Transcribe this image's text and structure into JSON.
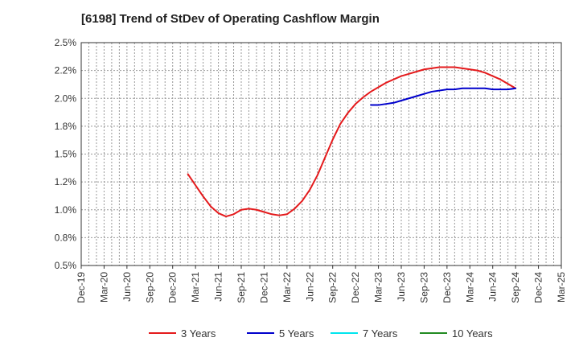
{
  "chart_data": {
    "type": "line",
    "title": "[6198]  Trend of StDev of Operating Cashflow Margin",
    "xlabel": "",
    "ylabel": "",
    "x_ticks": [
      "Dec-19",
      "Mar-20",
      "Jun-20",
      "Sep-20",
      "Dec-20",
      "Mar-21",
      "Jun-21",
      "Sep-21",
      "Dec-21",
      "Mar-22",
      "Jun-22",
      "Sep-22",
      "Dec-22",
      "Mar-23",
      "Jun-23",
      "Sep-23",
      "Dec-23",
      "Mar-24",
      "Jun-24",
      "Sep-24",
      "Dec-24",
      "Mar-25"
    ],
    "y_ticks": [
      "0.5%",
      "0.8%",
      "1.0%",
      "1.2%",
      "1.5%",
      "1.8%",
      "2.0%",
      "2.2%",
      "2.5%"
    ],
    "ylim": [
      0.5,
      2.5
    ],
    "grid": true,
    "legend_position": "bottom",
    "series": [
      {
        "name": "3 Years",
        "color": "#e41a1c",
        "points": [
          [
            "Feb-21",
            1.32
          ],
          [
            "Mar-21",
            1.22
          ],
          [
            "Apr-21",
            1.12
          ],
          [
            "May-21",
            1.03
          ],
          [
            "Jun-21",
            0.97
          ],
          [
            "Jul-21",
            0.94
          ],
          [
            "Aug-21",
            0.96
          ],
          [
            "Sep-21",
            1.0
          ],
          [
            "Oct-21",
            1.01
          ],
          [
            "Nov-21",
            1.0
          ],
          [
            "Dec-21",
            0.98
          ],
          [
            "Jan-22",
            0.96
          ],
          [
            "Feb-22",
            0.95
          ],
          [
            "Mar-22",
            0.96
          ],
          [
            "Apr-22",
            1.01
          ],
          [
            "May-22",
            1.08
          ],
          [
            "Jun-22",
            1.18
          ],
          [
            "Jul-22",
            1.31
          ],
          [
            "Aug-22",
            1.47
          ],
          [
            "Sep-22",
            1.63
          ],
          [
            "Oct-22",
            1.77
          ],
          [
            "Nov-22",
            1.87
          ],
          [
            "Dec-22",
            1.95
          ],
          [
            "Jan-23",
            2.01
          ],
          [
            "Feb-23",
            2.06
          ],
          [
            "Mar-23",
            2.1
          ],
          [
            "Apr-23",
            2.14
          ],
          [
            "May-23",
            2.17
          ],
          [
            "Jun-23",
            2.2
          ],
          [
            "Jul-23",
            2.22
          ],
          [
            "Aug-23",
            2.24
          ],
          [
            "Sep-23",
            2.26
          ],
          [
            "Oct-23",
            2.27
          ],
          [
            "Nov-23",
            2.28
          ],
          [
            "Dec-23",
            2.28
          ],
          [
            "Jan-24",
            2.28
          ],
          [
            "Feb-24",
            2.27
          ],
          [
            "Mar-24",
            2.26
          ],
          [
            "Apr-24",
            2.25
          ],
          [
            "May-24",
            2.23
          ],
          [
            "Jun-24",
            2.2
          ],
          [
            "Jul-24",
            2.17
          ],
          [
            "Aug-24",
            2.13
          ],
          [
            "Sep-24",
            2.09
          ]
        ]
      },
      {
        "name": "5 Years",
        "color": "#0000cc",
        "points": [
          [
            "Feb-23",
            1.94
          ],
          [
            "Mar-23",
            1.94
          ],
          [
            "Apr-23",
            1.95
          ],
          [
            "May-23",
            1.96
          ],
          [
            "Jun-23",
            1.98
          ],
          [
            "Jul-23",
            2.0
          ],
          [
            "Aug-23",
            2.02
          ],
          [
            "Sep-23",
            2.04
          ],
          [
            "Oct-23",
            2.06
          ],
          [
            "Nov-23",
            2.07
          ],
          [
            "Dec-23",
            2.08
          ],
          [
            "Jan-24",
            2.08
          ],
          [
            "Feb-24",
            2.09
          ],
          [
            "Mar-24",
            2.09
          ],
          [
            "Apr-24",
            2.09
          ],
          [
            "May-24",
            2.09
          ],
          [
            "Jun-24",
            2.08
          ],
          [
            "Jul-24",
            2.08
          ],
          [
            "Aug-24",
            2.08
          ],
          [
            "Sep-24",
            2.09
          ]
        ]
      },
      {
        "name": "7 Years",
        "color": "#00e5ee",
        "points": []
      },
      {
        "name": "10 Years",
        "color": "#228b22",
        "points": []
      }
    ]
  }
}
